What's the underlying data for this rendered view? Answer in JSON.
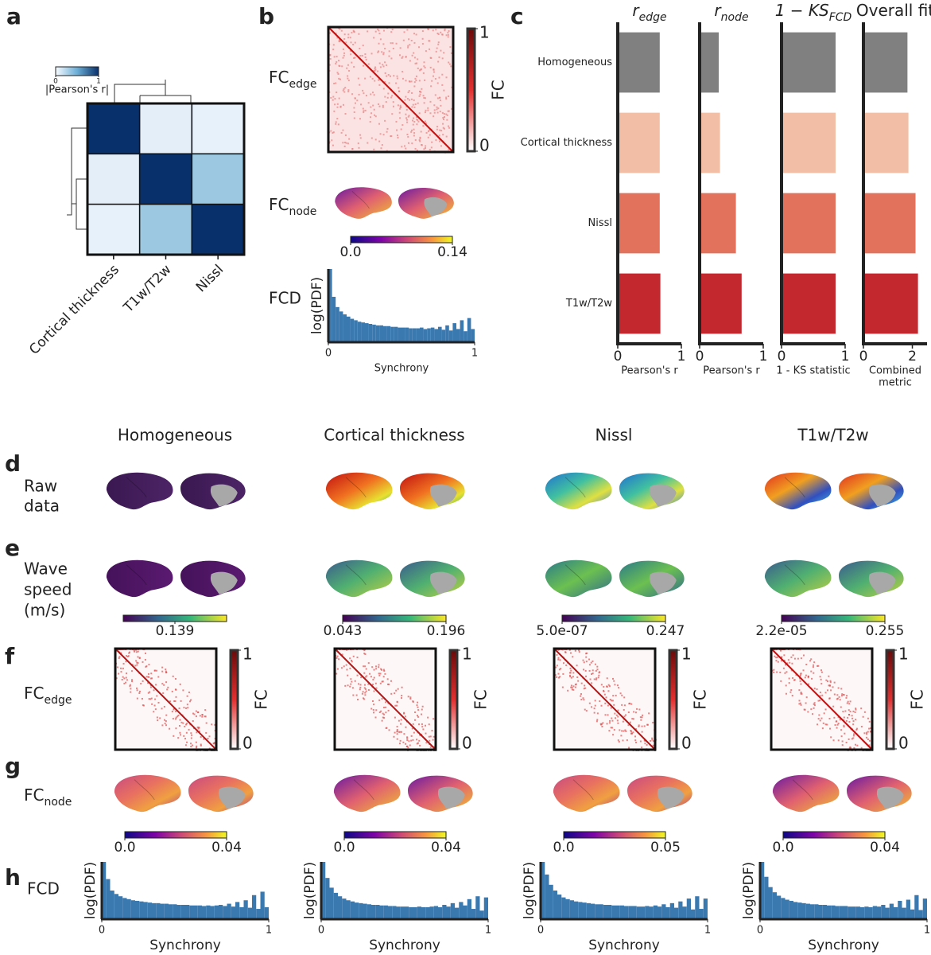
{
  "figure": {
    "panel_letters": [
      "a",
      "b",
      "c",
      "d",
      "e",
      "f",
      "g",
      "h"
    ],
    "column_titles": [
      "Homogeneous",
      "Cortical thickness",
      "Nissl",
      "T1w/T2w"
    ],
    "raw_data_label": [
      "Raw",
      "data"
    ],
    "wave_speed_label": [
      "Wave",
      "speed",
      "(m/s)"
    ],
    "fc_edge_label": {
      "main": "FC",
      "sub": "edge"
    },
    "fc_node_label": {
      "main": "FC",
      "sub": "node"
    },
    "fcd_label": "FCD",
    "fc_colorbar": {
      "label": "FC",
      "ticks": [
        0,
        1
      ]
    },
    "fc_node_colorbar_b": {
      "ticks": [
        {
          "value": 0,
          "label": "0.0"
        },
        0.14
      ]
    },
    "wave_colorbars": [
      {
        "ticks": [
          0.139
        ]
      },
      {
        "ticks": [
          0.043,
          0.196
        ]
      },
      {
        "ticks": [
          {
            "value": 5e-07,
            "label": "5.0e-07"
          },
          0.247
        ]
      },
      {
        "ticks": [
          {
            "value": 2.2e-05,
            "label": "2.2e-05"
          },
          0.255
        ]
      }
    ],
    "fc_node_colorbars": [
      {
        "ticks": [
          {
            "value": 0,
            "label": "0.0"
          },
          0.04
        ]
      },
      {
        "ticks": [
          {
            "value": 0,
            "label": "0.0"
          },
          0.04
        ]
      },
      {
        "ticks": [
          {
            "value": 0,
            "label": "0.0"
          },
          0.05
        ]
      },
      {
        "ticks": [
          {
            "value": 0,
            "label": "0.0"
          },
          0.04
        ]
      }
    ]
  },
  "chart_data": [
    {
      "type": "heatmap",
      "categories": [
        "Cortical thickness",
        "T1w/T2w",
        "Nissl"
      ],
      "values": [
        [
          1,
          0.1,
          0.08
        ],
        [
          0.1,
          1,
          0.38
        ],
        [
          0.08,
          0.38,
          1
        ]
      ],
      "cmap": "Blues",
      "colorbar": {
        "label": "|Pearson's r|",
        "ticks": [
          0,
          1
        ]
      }
    },
    {
      "type": "barh",
      "title": "r",
      "title_sub": "edge",
      "categories": [
        "Homogeneous",
        "Cortical thickness",
        "Nissl",
        "T1w/T2w"
      ],
      "colors": [
        "#808080",
        "#f2bfa6",
        "#e2725b",
        "#c3282f"
      ],
      "values": [
        0.66,
        0.66,
        0.66,
        0.67
      ],
      "xlim": [
        0,
        1
      ],
      "xticks": [
        0,
        1
      ],
      "xlabel": "Pearson's r"
    },
    {
      "type": "barh",
      "title": "r",
      "title_sub": "node",
      "colors": [
        "#808080",
        "#f2bfa6",
        "#e2725b",
        "#c3282f"
      ],
      "values": [
        0.3,
        0.32,
        0.57,
        0.66
      ],
      "xlim": [
        0,
        1
      ],
      "xticks": [
        0,
        1
      ],
      "xlabel": "Pearson's r"
    },
    {
      "type": "barh",
      "title": "1 − KS",
      "title_sub": "FCD",
      "colors": [
        "#808080",
        "#f2bfa6",
        "#e2725b",
        "#c3282f"
      ],
      "values": [
        0.85,
        0.85,
        0.85,
        0.85
      ],
      "xlim": [
        0,
        1
      ],
      "xticks": [
        0,
        1
      ],
      "xlabel": "1 - KS statistic"
    },
    {
      "type": "barh",
      "title": "Overall fit",
      "colors": [
        "#808080",
        "#f2bfa6",
        "#e2725b",
        "#c3282f"
      ],
      "values": [
        1.8,
        1.84,
        2.13,
        2.23
      ],
      "xlim": [
        0,
        2.6
      ],
      "xticks": [
        0,
        2
      ],
      "xlabel": [
        "Combined",
        "metric"
      ]
    },
    {
      "type": "histogram",
      "xlabel": "Synchrony",
      "ylabel": "log(PDF)",
      "color": "#3a78b0",
      "bins": [
        0,
        0.025,
        0.05,
        0.075,
        0.1,
        0.125,
        0.15,
        0.175,
        0.2,
        0.225,
        0.25,
        0.275,
        0.3,
        0.325,
        0.35,
        0.375,
        0.4,
        0.425,
        0.45,
        0.475,
        0.5,
        0.525,
        0.55,
        0.575,
        0.6,
        0.625,
        0.65,
        0.675,
        0.7,
        0.725,
        0.75,
        0.775,
        0.8,
        0.825,
        0.85,
        0.875,
        0.9,
        0.925,
        0.95,
        0.975,
        1
      ],
      "values": [
        1.0,
        0.62,
        0.48,
        0.42,
        0.38,
        0.35,
        0.32,
        0.3,
        0.28,
        0.27,
        0.26,
        0.25,
        0.24,
        0.23,
        0.23,
        0.22,
        0.22,
        0.21,
        0.21,
        0.2,
        0.2,
        0.2,
        0.19,
        0.19,
        0.19,
        0.2,
        0.18,
        0.19,
        0.2,
        0.18,
        0.21,
        0.17,
        0.23,
        0.16,
        0.26,
        0.18,
        0.3,
        0.15,
        0.33,
        0.18
      ],
      "xlim": [
        0,
        1
      ],
      "xticks": [
        0,
        1
      ],
      "ylim": [
        0,
        1
      ]
    },
    {
      "type": "histogram",
      "xlabel": "Synchrony",
      "ylabel": "log(PDF)",
      "color": "#3a78b0",
      "bins": [
        0,
        0.025,
        0.05,
        0.075,
        0.1,
        0.125,
        0.15,
        0.175,
        0.2,
        0.225,
        0.25,
        0.275,
        0.3,
        0.325,
        0.35,
        0.375,
        0.4,
        0.425,
        0.45,
        0.475,
        0.5,
        0.525,
        0.55,
        0.575,
        0.6,
        0.625,
        0.65,
        0.675,
        0.7,
        0.725,
        0.75,
        0.775,
        0.8,
        0.825,
        0.85,
        0.875,
        0.9,
        0.925,
        0.95,
        0.975,
        1
      ],
      "values": [
        1.0,
        0.7,
        0.5,
        0.44,
        0.4,
        0.37,
        0.35,
        0.33,
        0.32,
        0.31,
        0.3,
        0.29,
        0.28,
        0.28,
        0.27,
        0.27,
        0.26,
        0.26,
        0.25,
        0.25,
        0.25,
        0.24,
        0.24,
        0.24,
        0.23,
        0.24,
        0.23,
        0.24,
        0.25,
        0.23,
        0.27,
        0.22,
        0.3,
        0.21,
        0.33,
        0.2,
        0.42,
        0.18,
        0.48,
        0.21
      ],
      "xlim": [
        0,
        1
      ],
      "xticks": [
        0,
        1
      ],
      "ylim": [
        0,
        1
      ]
    },
    {
      "type": "histogram",
      "xlabel": "Synchrony",
      "ylabel": "log(PDF)",
      "color": "#3a78b0",
      "bins": [
        0,
        0.025,
        0.05,
        0.075,
        0.1,
        0.125,
        0.15,
        0.175,
        0.2,
        0.225,
        0.25,
        0.275,
        0.3,
        0.325,
        0.35,
        0.375,
        0.4,
        0.425,
        0.45,
        0.475,
        0.5,
        0.525,
        0.55,
        0.575,
        0.6,
        0.625,
        0.65,
        0.675,
        0.7,
        0.725,
        0.75,
        0.775,
        0.8,
        0.825,
        0.85,
        0.875,
        0.9,
        0.925,
        0.95,
        0.975,
        1
      ],
      "values": [
        1.0,
        0.72,
        0.55,
        0.46,
        0.4,
        0.36,
        0.33,
        0.31,
        0.29,
        0.28,
        0.27,
        0.26,
        0.25,
        0.25,
        0.24,
        0.24,
        0.23,
        0.23,
        0.22,
        0.22,
        0.22,
        0.21,
        0.21,
        0.22,
        0.21,
        0.21,
        0.22,
        0.23,
        0.21,
        0.25,
        0.22,
        0.28,
        0.2,
        0.3,
        0.24,
        0.35,
        0.18,
        0.4,
        0.15,
        0.38
      ],
      "xlim": [
        0,
        1
      ],
      "xticks": [
        0,
        1
      ],
      "ylim": [
        0,
        1
      ]
    },
    {
      "type": "histogram",
      "xlabel": "Synchrony",
      "ylabel": "log(PDF)",
      "color": "#3a78b0",
      "bins": [
        0,
        0.025,
        0.05,
        0.075,
        0.1,
        0.125,
        0.15,
        0.175,
        0.2,
        0.225,
        0.25,
        0.275,
        0.3,
        0.325,
        0.35,
        0.375,
        0.4,
        0.425,
        0.45,
        0.475,
        0.5,
        0.525,
        0.55,
        0.575,
        0.6,
        0.625,
        0.65,
        0.675,
        0.7,
        0.725,
        0.75,
        0.775,
        0.8,
        0.825,
        0.85,
        0.875,
        0.9,
        0.925,
        0.95,
        0.975,
        1
      ],
      "values": [
        1.0,
        0.78,
        0.6,
        0.5,
        0.43,
        0.38,
        0.35,
        0.33,
        0.31,
        0.3,
        0.29,
        0.28,
        0.27,
        0.26,
        0.26,
        0.25,
        0.25,
        0.24,
        0.24,
        0.24,
        0.23,
        0.23,
        0.23,
        0.22,
        0.22,
        0.23,
        0.22,
        0.24,
        0.22,
        0.26,
        0.21,
        0.28,
        0.2,
        0.31,
        0.22,
        0.36,
        0.17,
        0.4,
        0.18,
        0.36
      ],
      "xlim": [
        0,
        1
      ],
      "xticks": [
        0,
        1
      ],
      "ylim": [
        0,
        1
      ]
    },
    {
      "type": "histogram",
      "xlabel": "Synchrony",
      "ylabel": "log(PDF)",
      "color": "#3a78b0",
      "bins": [
        0,
        0.025,
        0.05,
        0.075,
        0.1,
        0.125,
        0.15,
        0.175,
        0.2,
        0.225,
        0.25,
        0.275,
        0.3,
        0.325,
        0.35,
        0.375,
        0.4,
        0.425,
        0.45,
        0.475,
        0.5,
        0.525,
        0.55,
        0.575,
        0.6,
        0.625,
        0.65,
        0.675,
        0.7,
        0.725,
        0.75,
        0.775,
        0.8,
        0.825,
        0.85,
        0.875,
        0.9,
        0.925,
        0.95,
        0.975,
        1
      ],
      "values": [
        1.0,
        0.74,
        0.56,
        0.47,
        0.41,
        0.37,
        0.34,
        0.32,
        0.3,
        0.29,
        0.28,
        0.27,
        0.26,
        0.26,
        0.25,
        0.25,
        0.24,
        0.24,
        0.23,
        0.23,
        0.23,
        0.22,
        0.22,
        0.22,
        0.21,
        0.22,
        0.21,
        0.23,
        0.22,
        0.25,
        0.2,
        0.27,
        0.21,
        0.32,
        0.2,
        0.34,
        0.17,
        0.42,
        0.16,
        0.36
      ],
      "xlim": [
        0,
        1
      ],
      "xticks": [
        0,
        1
      ],
      "ylim": [
        0,
        1
      ]
    }
  ]
}
